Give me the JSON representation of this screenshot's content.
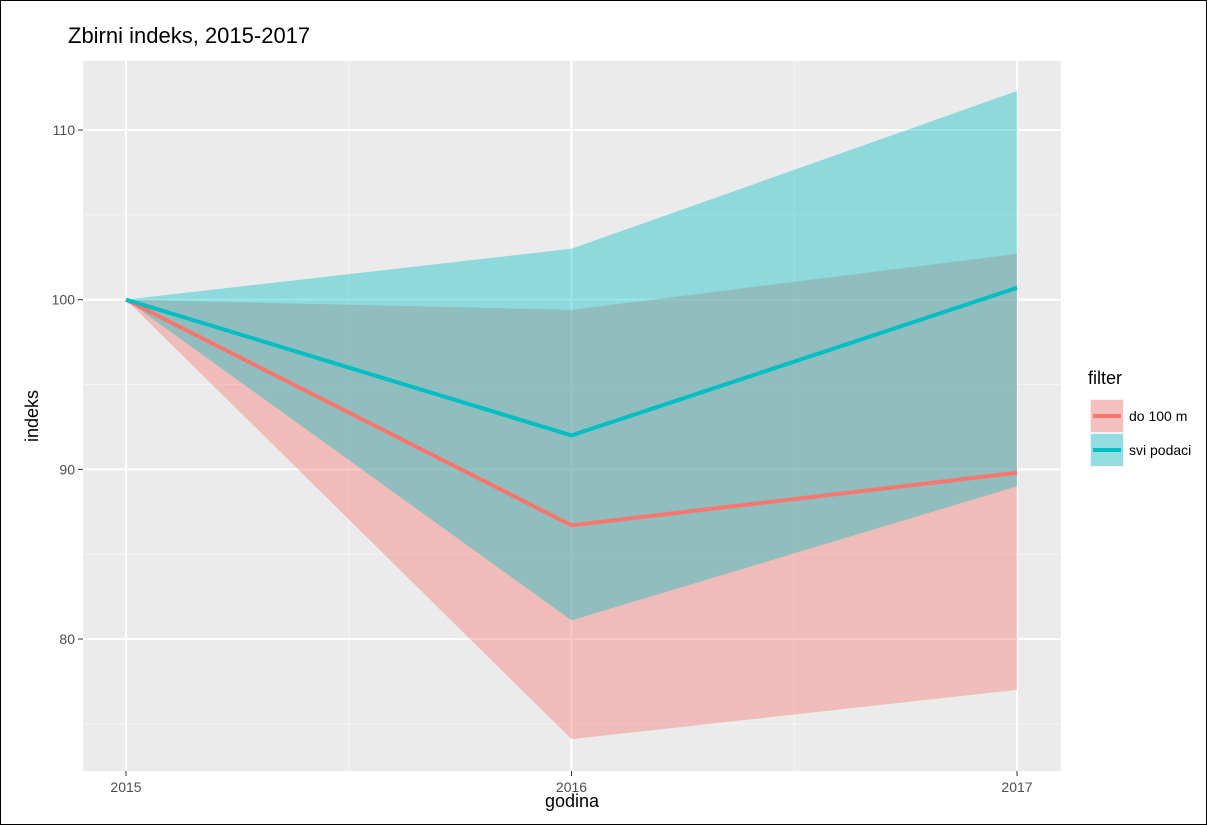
{
  "chart_data": {
    "type": "area",
    "title": "Zbirni indeks, 2015-2017",
    "xlabel": "godina",
    "ylabel": "indeks",
    "x": [
      2015,
      2016,
      2017
    ],
    "x_ticks": [
      "2015",
      "2016",
      "2017"
    ],
    "y_ticks": [
      80,
      90,
      100,
      110
    ],
    "xlim": [
      2014.9,
      2017.1
    ],
    "ylim": [
      72.8,
      114.2
    ],
    "grid": true,
    "legend": {
      "title": "filter",
      "position": "right"
    },
    "series": [
      {
        "name": "do 100 m",
        "color": "#F8766D",
        "values": [
          100,
          86.7,
          89.8
        ],
        "lower": [
          100,
          74.1,
          77.0
        ],
        "upper": [
          100,
          99.4,
          102.7
        ]
      },
      {
        "name": "svi podaci",
        "color": "#00BFC4",
        "values": [
          100,
          92.0,
          100.7
        ],
        "lower": [
          100,
          81.1,
          89.0
        ],
        "upper": [
          100,
          103.0,
          112.3
        ]
      }
    ]
  }
}
